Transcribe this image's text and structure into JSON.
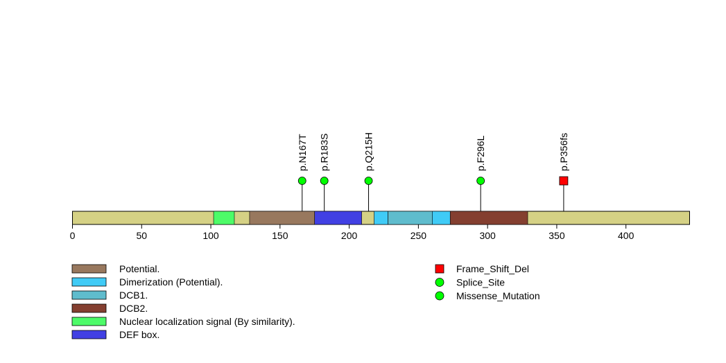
{
  "chart_data": {
    "type": "lollipop",
    "x_axis": {
      "min": 0,
      "max": 446,
      "ticks": [
        0,
        50,
        100,
        150,
        200,
        250,
        300,
        350,
        400
      ]
    },
    "protein": {
      "start": 0,
      "end": 446,
      "color": "#d5d185"
    },
    "domains": [
      {
        "name": "Nuclear localization signal (By similarity).",
        "start": 102,
        "end": 117,
        "color": "#4dfb68"
      },
      {
        "name": "Potential.",
        "start": 128,
        "end": 175,
        "color": "#98785e"
      },
      {
        "name": "DEF box.",
        "start": 175,
        "end": 209,
        "color": "#4140e3"
      },
      {
        "name": "Dimerization (Potential).",
        "start": 218,
        "end": 228,
        "color": "#40cbf6"
      },
      {
        "name": "DCB1.",
        "start": 228,
        "end": 260,
        "color": "#5fbccd"
      },
      {
        "name": "Dimerization (Potential).",
        "start": 260,
        "end": 273,
        "color": "#40cbf6"
      },
      {
        "name": "DCB2.",
        "start": 273,
        "end": 329,
        "color": "#843f30"
      }
    ],
    "mutations": [
      {
        "label": "p.N167T",
        "position": 166,
        "type": "Missense_Mutation"
      },
      {
        "label": "p.R183S",
        "position": 182,
        "type": "Missense_Mutation"
      },
      {
        "label": "p.Q215H",
        "position": 214,
        "type": "Missense_Mutation"
      },
      {
        "label": "p.F296L",
        "position": 295,
        "type": "Missense_Mutation"
      },
      {
        "label": "p.P356fs",
        "position": 355,
        "type": "Frame_Shift_Del"
      }
    ],
    "domain_legend": [
      {
        "label": "Potential.",
        "color": "#98785e"
      },
      {
        "label": "Dimerization (Potential).",
        "color": "#40cbf6"
      },
      {
        "label": "DCB1.",
        "color": "#5fbccd"
      },
      {
        "label": "DCB2.",
        "color": "#843f30"
      },
      {
        "label": "Nuclear localization signal (By similarity).",
        "color": "#4dfb68"
      },
      {
        "label": "DEF box.",
        "color": "#4140e3"
      }
    ],
    "mutation_legend": [
      {
        "label": "Frame_Shift_Del",
        "shape": "square",
        "color": "#ff0000"
      },
      {
        "label": "Splice_Site",
        "shape": "circle",
        "color": "#00ff00"
      },
      {
        "label": "Missense_Mutation",
        "shape": "circle",
        "color": "#00ff00"
      }
    ]
  }
}
